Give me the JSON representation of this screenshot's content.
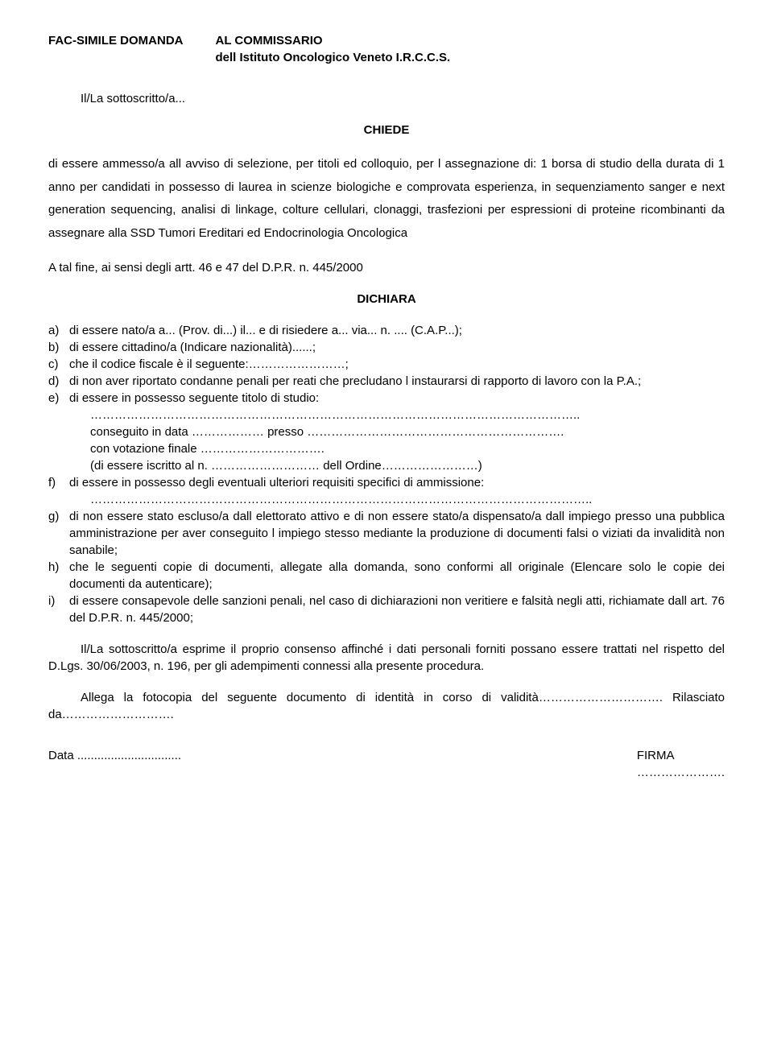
{
  "header": {
    "left": "FAC-SIMILE DOMANDA",
    "right_line1": "AL COMMISSARIO",
    "right_line2": "dell Istituto Oncologico Veneto I.R.C.C.S."
  },
  "intro": "Il/La sottoscritto/a...",
  "chiede_label": "CHIEDE",
  "chiede_body": "di essere ammesso/a all avviso di selezione, per titoli ed colloquio, per l assegnazione di: 1 borsa di studio della durata di 1 anno per candidati in possesso di laurea in scienze biologiche e comprovata esperienza, in sequenziamento sanger e next generation sequencing, analisi di linkage, colture cellulari, clonaggi, trasfezioni per espressioni di proteine ricombinanti da assegnare alla SSD Tumori Ereditari ed Endocrinologia Oncologica",
  "talfine": "A tal fine, ai sensi degli artt. 46 e 47 del D.P.R. n. 445/2000",
  "dichiara_label": "DICHIARA",
  "items": [
    {
      "marker": "a)",
      "text": "di essere nato/a a... (Prov. di...) il... e di risiedere a... via... n. .... (C.A.P...);"
    },
    {
      "marker": "b)",
      "text": "di essere cittadino/a (Indicare nazionalità)......;"
    },
    {
      "marker": "c)",
      "text": "che il codice fiscale è il seguente:……………………;"
    },
    {
      "marker": "d)",
      "text": "di non aver riportato condanne penali per reati che precludano l instaurarsi di rapporto di lavoro con la P.A.;"
    },
    {
      "marker": "e)",
      "text": "di essere in possesso seguente titolo di studio:"
    },
    {
      "marker": "",
      "text": "………………………………………………………………………………………………………….."
    },
    {
      "marker": "",
      "text": "conseguito in data ……………… presso ………………………………………………………."
    },
    {
      "marker": "",
      "text": "con votazione finale …………………………."
    },
    {
      "marker": "",
      "text": "(di essere iscritto al n. ……………………… dell Ordine……………………)"
    },
    {
      "marker": "f)",
      "text": "di essere in possesso degli eventuali ulteriori requisiti specifici di ammissione:"
    },
    {
      "marker": "",
      "text": "…………………………………………………………………………………………………………….."
    },
    {
      "marker": "g)",
      "text": "di non essere stato escluso/a dall elettorato attivo e di non essere stato/a dispensato/a dall impiego presso una pubblica amministrazione per aver conseguito l impiego stesso mediante la produzione di documenti falsi o viziati da invalidità non sanabile;"
    },
    {
      "marker": "h)",
      "text": "che le seguenti copie di documenti, allegate alla domanda, sono conformi all originale (Elencare solo le copie dei documenti da autenticare);"
    },
    {
      "marker": "i)",
      "text": "di essere consapevole delle sanzioni penali, nel caso di dichiarazioni non veritiere e falsità negli atti, richiamate dall art. 76 del D.P.R. n. 445/2000;"
    }
  ],
  "consent": "Il/La sottoscritto/a esprime il proprio consenso affinché i dati personali forniti possano essere trattati nel rispetto del D.Lgs. 30/06/2003, n. 196, per gli adempimenti connessi alla presente procedura.",
  "attach": "Allega la fotocopia del seguente documento di identità in corso di validità…………………………. Rilasciato da……………………….",
  "footer": {
    "data": "Data ...............................",
    "firma": "FIRMA",
    "firma_dots": "…………………."
  }
}
